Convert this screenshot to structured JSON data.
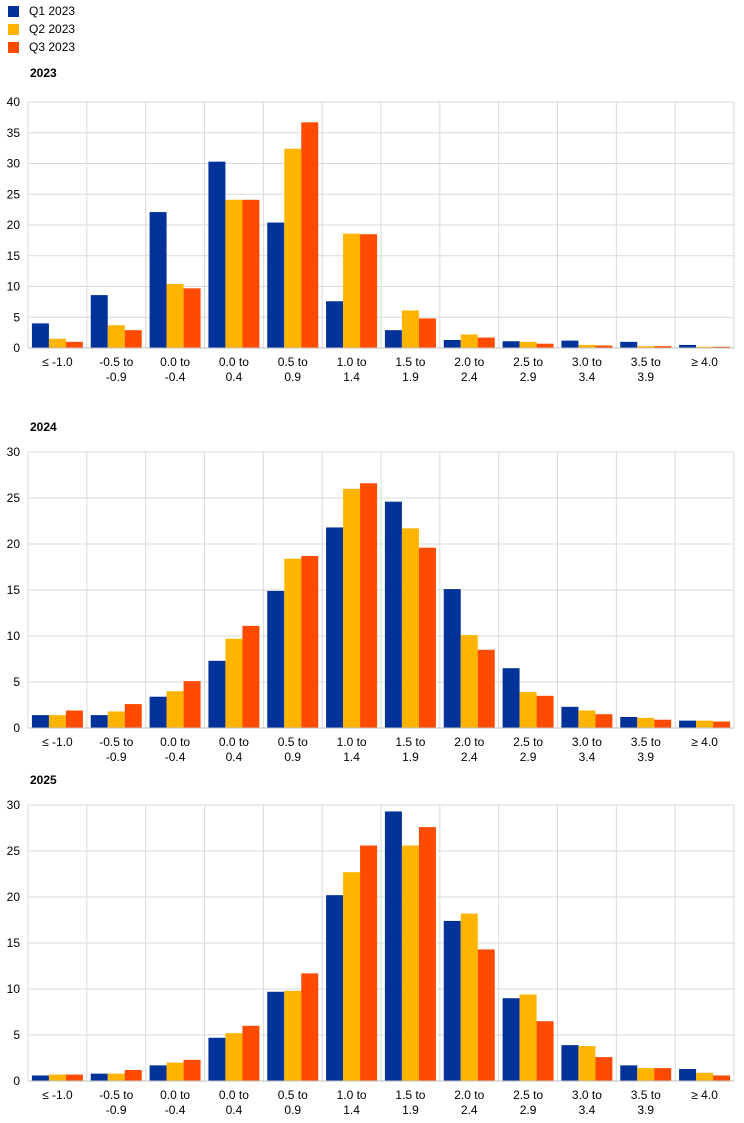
{
  "legend": {
    "items": [
      {
        "label": "Q1 2023",
        "color": "#003299"
      },
      {
        "label": "Q2 2023",
        "color": "#FFB400"
      },
      {
        "label": "Q3 2023",
        "color": "#FF4B00"
      }
    ]
  },
  "chart_data": [
    {
      "type": "bar",
      "title": "2023",
      "xlabel": "",
      "ylabel": "",
      "ylim": [
        0,
        40
      ],
      "yticks": [
        0,
        5,
        10,
        15,
        20,
        25,
        30,
        35,
        40
      ],
      "grid": true,
      "legend_position": "top-left",
      "categories": [
        "≤ -1.0",
        "-0.5  to\n-0.9",
        "0.0  to\n-0.4",
        "0.0  to\n0.4",
        "0.5  to\n0.9",
        "1.0  to\n1.4",
        "1.5  to\n1.9",
        "2.0  to\n2.4",
        "2.5  to\n2.9",
        "3.0  to\n3.4",
        "3.5  to\n3.9",
        "≥ 4.0"
      ],
      "series": [
        {
          "name": "Q1 2023",
          "color": "#003299",
          "values": [
            4.0,
            8.6,
            22.1,
            30.3,
            20.4,
            7.6,
            2.9,
            1.3,
            1.1,
            1.2,
            1.0,
            0.5
          ]
        },
        {
          "name": "Q2 2023",
          "color": "#FFB400",
          "values": [
            1.5,
            3.7,
            10.4,
            24.1,
            32.4,
            18.6,
            6.1,
            2.2,
            1.0,
            0.5,
            0.3,
            0.2
          ]
        },
        {
          "name": "Q3 2023",
          "color": "#FF4B00",
          "values": [
            1.0,
            2.9,
            9.7,
            24.1,
            36.7,
            18.5,
            4.8,
            1.7,
            0.7,
            0.4,
            0.3,
            0.2
          ]
        }
      ]
    },
    {
      "type": "bar",
      "title": "2024",
      "xlabel": "",
      "ylabel": "",
      "ylim": [
        0,
        30
      ],
      "yticks": [
        0,
        5,
        10,
        15,
        20,
        25,
        30
      ],
      "grid": true,
      "categories": [
        "≤ -1.0",
        "-0.5  to\n-0.9",
        "0.0  to\n-0.4",
        "0.0  to\n0.4",
        "0.5  to\n0.9",
        "1.0  to\n1.4",
        "1.5  to\n1.9",
        "2.0  to\n2.4",
        "2.5  to\n2.9",
        "3.0  to\n3.4",
        "3.5  to\n3.9",
        "≥ 4.0"
      ],
      "series": [
        {
          "name": "Q1 2023",
          "color": "#003299",
          "values": [
            1.4,
            1.4,
            3.4,
            7.3,
            14.9,
            21.8,
            24.6,
            15.1,
            6.5,
            2.3,
            1.2,
            0.8
          ]
        },
        {
          "name": "Q2 2023",
          "color": "#FFB400",
          "values": [
            1.4,
            1.8,
            4.0,
            9.7,
            18.4,
            26.0,
            21.7,
            10.1,
            3.9,
            1.9,
            1.1,
            0.8
          ]
        },
        {
          "name": "Q3 2023",
          "color": "#FF4B00",
          "values": [
            1.9,
            2.6,
            5.1,
            11.1,
            18.7,
            26.6,
            19.6,
            8.5,
            3.5,
            1.5,
            0.9,
            0.7
          ]
        }
      ]
    },
    {
      "type": "bar",
      "title": "2025",
      "xlabel": "",
      "ylabel": "",
      "ylim": [
        0,
        30
      ],
      "yticks": [
        0,
        5,
        10,
        15,
        20,
        25,
        30
      ],
      "grid": true,
      "categories": [
        "≤ -1.0",
        "-0.5  to\n-0.9",
        "0.0  to\n-0.4",
        "0.0  to\n0.4",
        "0.5  to\n0.9",
        "1.0  to\n1.4",
        "1.5  to\n1.9",
        "2.0  to\n2.4",
        "2.5  to\n2.9",
        "3.0  to\n3.4",
        "3.5  to\n3.9",
        "≥ 4.0"
      ],
      "series": [
        {
          "name": "Q1 2023",
          "color": "#003299",
          "values": [
            0.6,
            0.8,
            1.7,
            4.7,
            9.7,
            20.2,
            29.3,
            17.4,
            9.0,
            3.9,
            1.7,
            1.3
          ]
        },
        {
          "name": "Q2 2023",
          "color": "#FFB400",
          "values": [
            0.7,
            0.8,
            2.0,
            5.2,
            9.8,
            22.7,
            25.6,
            18.2,
            9.4,
            3.8,
            1.4,
            0.9
          ]
        },
        {
          "name": "Q3 2023",
          "color": "#FF4B00",
          "values": [
            0.7,
            1.2,
            2.3,
            6.0,
            11.7,
            25.6,
            27.6,
            14.3,
            6.5,
            2.6,
            1.4,
            0.6
          ]
        }
      ]
    }
  ]
}
